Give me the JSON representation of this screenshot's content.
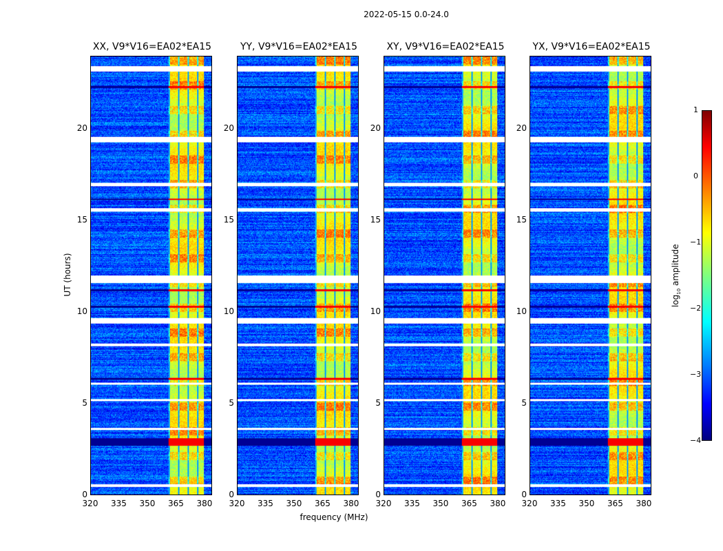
{
  "chart_data": {
    "type": "heatmap",
    "title": "2022-05-15 0.0-24.0",
    "xlabel": "frequency (MHz)",
    "ylabel": "UT (hours)",
    "xlim": [
      320,
      384
    ],
    "ylim": [
      0,
      24
    ],
    "xticks": [
      "320",
      "335",
      "350",
      "365",
      "380"
    ],
    "xtick_values": [
      320,
      335,
      350,
      365,
      380
    ],
    "yticks": [
      "0",
      "5",
      "10",
      "15",
      "20"
    ],
    "ytick_values": [
      0,
      5,
      10,
      15,
      20
    ],
    "panels": [
      {
        "title": "XX, V9*V16=EA02*EA15"
      },
      {
        "title": "YY, V9*V16=EA02*EA15"
      },
      {
        "title": "XY, V9*V16=EA02*EA15"
      },
      {
        "title": "YX, V9*V16=EA02*EA15"
      }
    ],
    "rfi_band_mhz": [
      361,
      380
    ],
    "background_log_amplitude": -3,
    "band_log_amplitude": -1,
    "flagged_hours": [
      [
        23.2,
        23.5
      ],
      [
        19.3,
        19.6
      ],
      [
        16.9,
        17.1
      ],
      [
        15.5,
        15.7
      ],
      [
        11.6,
        12.0
      ],
      [
        9.4,
        9.7
      ],
      [
        8.15,
        8.3
      ],
      [
        6.05,
        6.15
      ],
      [
        5.15,
        5.25
      ],
      [
        3.55,
        3.65
      ],
      [
        0.45,
        0.6
      ]
    ],
    "dark_hours": [
      [
        2.7,
        3.1
      ],
      [
        10.25,
        10.35
      ],
      [
        11.15,
        11.25
      ],
      [
        16.15,
        16.25
      ],
      [
        6.3,
        6.4
      ],
      [
        22.3,
        22.4
      ]
    ],
    "colorbar": {
      "label": "log10 amplitude",
      "label_main": "log",
      "label_sub": "10",
      "label_rest": " amplitude",
      "range": [
        -4,
        1
      ],
      "ticks": [
        "1",
        "0",
        "−1",
        "−2",
        "−3",
        "−4"
      ],
      "tick_values": [
        1,
        0,
        -1,
        -2,
        -3,
        -4
      ],
      "colormap": "jet"
    }
  }
}
